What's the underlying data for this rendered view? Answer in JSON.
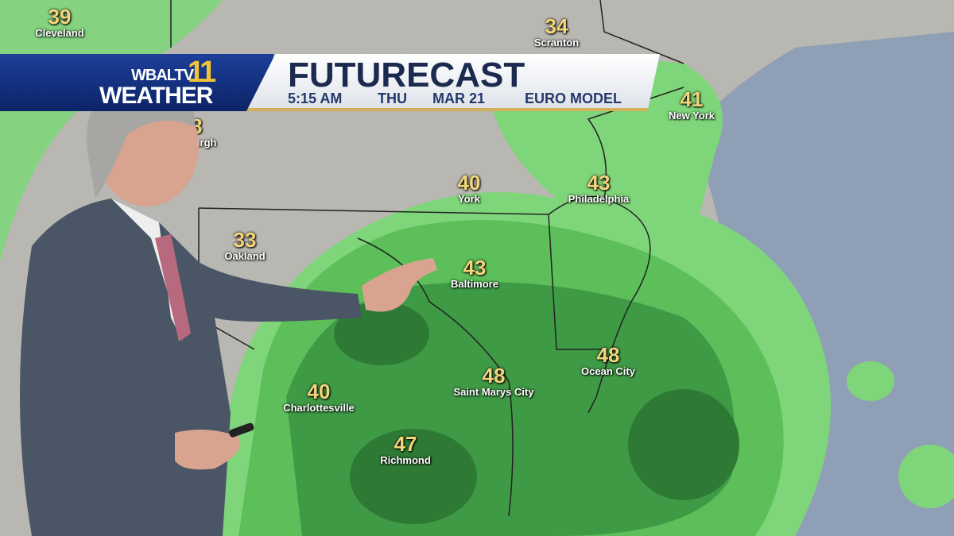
{
  "banner": {
    "logo_line1": "WBALTV",
    "logo_number": "11",
    "logo_line2": "WEATHER",
    "title": "FUTURECAST",
    "time": "5:15 AM",
    "day": "THU",
    "date": "MAR 21",
    "model": "EURO MODEL"
  },
  "cities": [
    {
      "name": "Cleveland",
      "temp": "39"
    },
    {
      "name": "Scranton",
      "temp": "34"
    },
    {
      "name": "New York",
      "temp": "41"
    },
    {
      "name": "Pittsburgh",
      "temp": "38"
    },
    {
      "name": "York",
      "temp": "40"
    },
    {
      "name": "Philadelphia",
      "temp": "43"
    },
    {
      "name": "Oakland",
      "temp": "33"
    },
    {
      "name": "Baltimore",
      "temp": "43"
    },
    {
      "name": "Ocean City",
      "temp": "48"
    },
    {
      "name": "Saint Marys City",
      "temp": "48"
    },
    {
      "name": "Charlottesville",
      "temp": "40"
    },
    {
      "name": "Richmond",
      "temp": "47"
    }
  ],
  "colors": {
    "land": "#b9b7b2",
    "ocean": "#8f9fb5",
    "rain_light": "#7fd67a",
    "rain_mid": "#4fae4f",
    "rain_heavy": "#2e7a35",
    "accent": "#f3d57a"
  }
}
